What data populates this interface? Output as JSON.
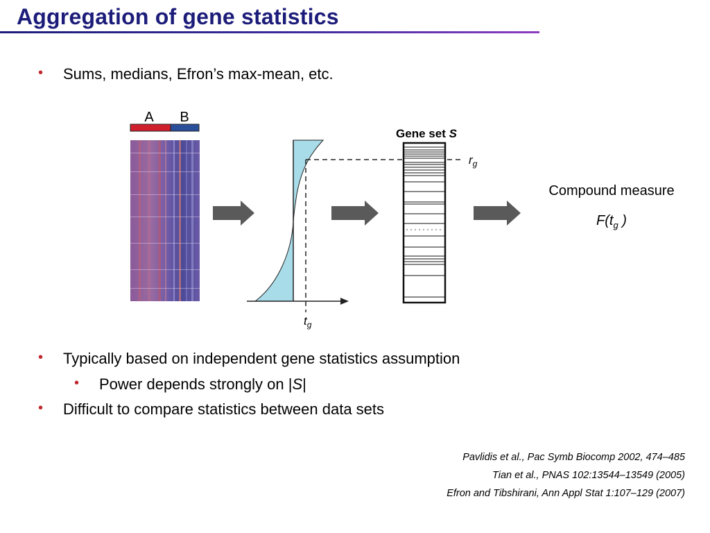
{
  "slide": {
    "title": "Aggregation of gene statistics"
  },
  "bullets": {
    "b1": "Sums, medians, Efron’s max-mean, etc.",
    "b2": "Typically based on independent gene statistics assumption",
    "b2_sub_prefix": "Power depends strongly on |",
    "b2_sub_var": "S",
    "b2_sub_suffix": "|",
    "b3": "Difficult to compare statistics between data sets"
  },
  "figure": {
    "group_a": "A",
    "group_b": "B",
    "geneset_prefix": "Gene set ",
    "geneset_var": "S",
    "r_main": "r",
    "r_sub": "g",
    "t_main": "t",
    "t_sub": "g",
    "compound_label": "Compound measure",
    "compound_f_prefix": "F(t",
    "compound_f_sub": "g",
    "compound_f_suffix": " )",
    "colors": {
      "group_a": "#d0202e",
      "group_b": "#2a4f9a",
      "curve_fill": "#a8dce8",
      "arrow": "#5a5a5a",
      "bullet": "#c0272d",
      "title": "#1c1c7a"
    }
  },
  "references": [
    "Pavlidis et al., Pac Symb Biocomp 2002, 474–485",
    "Tian et al., PNAS 102:13544–13549 (2005)",
    "Efron and Tibshirani, Ann Appl Stat 1:107–129 (2007)"
  ]
}
